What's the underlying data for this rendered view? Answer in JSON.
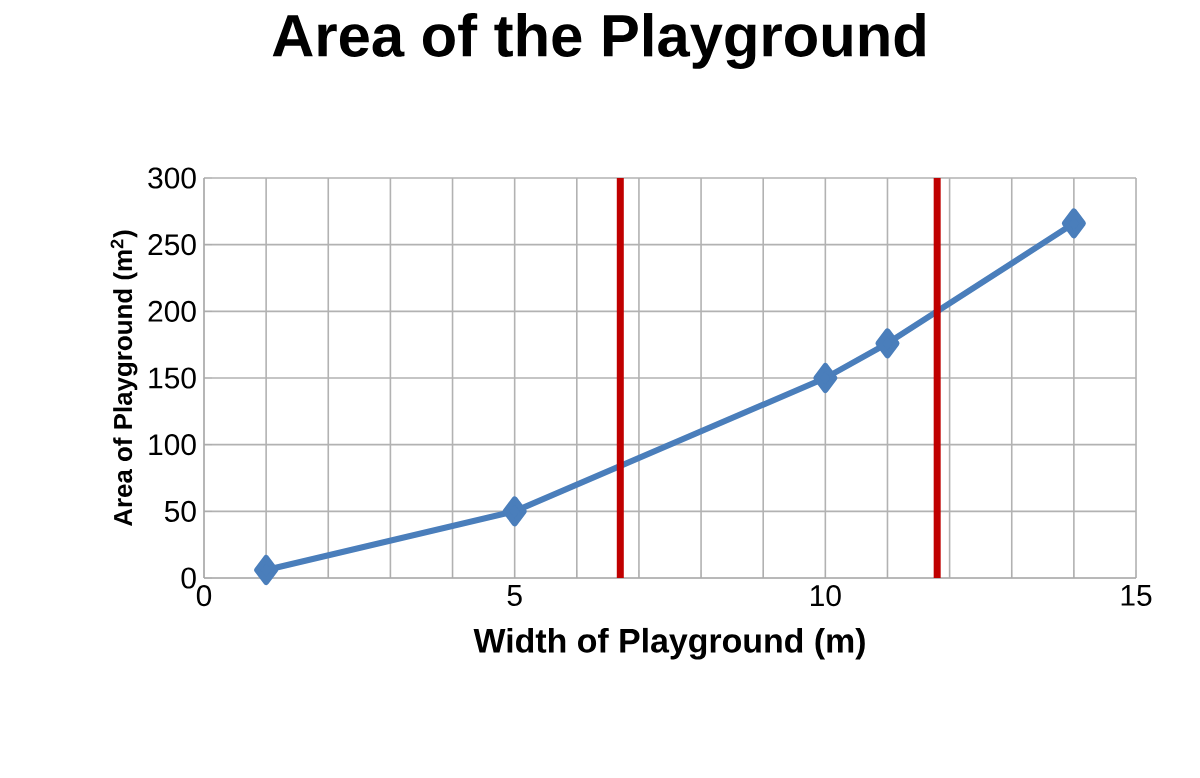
{
  "chart_data": {
    "type": "line",
    "title": "Area of the Playground",
    "xlabel": "Width of Playground (m)",
    "ylabel": "Area of Playground (m$^{2}$)",
    "x": [
      1,
      5,
      10,
      11,
      14
    ],
    "series": [
      {
        "color": "#4a7ebb",
        "values": [
          6,
          50,
          150,
          176,
          266
        ]
      }
    ],
    "xlim": [
      0,
      15
    ],
    "ylim": [
      0,
      300
    ],
    "xticks": [
      0,
      {
        "value": 1,
        "label": null
      },
      {
        "value": 2,
        "label": null
      },
      {
        "value": 3,
        "label": null
      },
      {
        "value": 4,
        "label": null
      },
      5,
      {
        "value": 6,
        "label": null
      },
      {
        "value": 7,
        "label": null
      },
      {
        "value": 8,
        "label": null
      },
      {
        "value": 9,
        "label": null
      },
      10,
      {
        "value": 11,
        "label": null
      },
      {
        "value": 12,
        "label": null
      },
      {
        "value": 13,
        "label": null
      },
      {
        "value": 14,
        "label": null
      },
      15
    ],
    "yticks": [
      0,
      50,
      100,
      150,
      200,
      250,
      300
    ],
    "ref_lines": [
      {
        "axis": "x",
        "value": 6.7,
        "color": "#c00000"
      },
      {
        "axis": "x",
        "value": 11.8,
        "color": "#c00000"
      }
    ],
    "grid": true,
    "marker": "diamond"
  }
}
